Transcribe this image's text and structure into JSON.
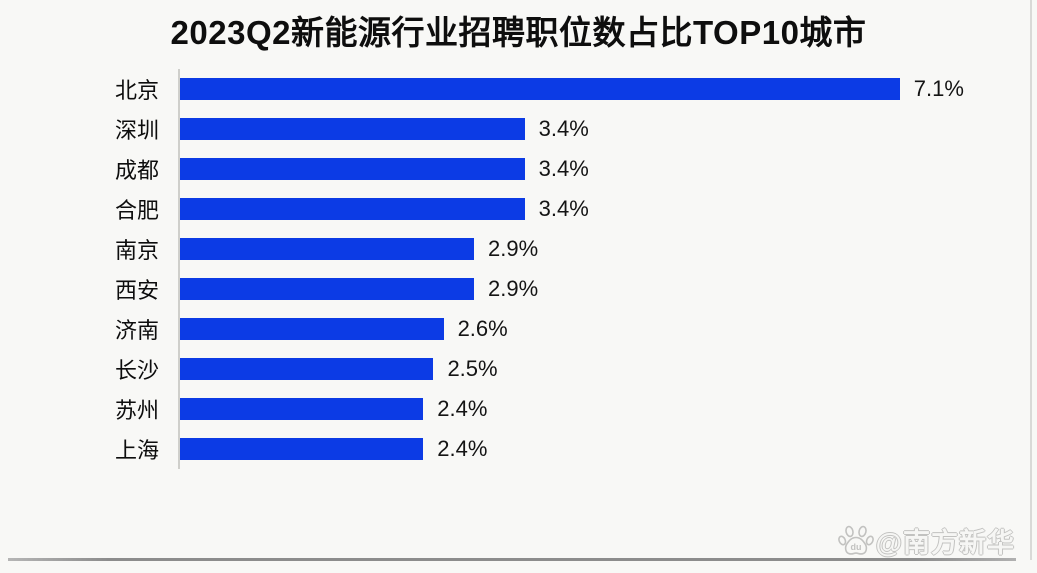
{
  "title": "2023Q2新能源行业招聘职位数占比TOP10城市",
  "watermark": {
    "icon": "baidu-paw-icon",
    "icon_text": "du",
    "text": "@南方新华"
  },
  "colors": {
    "bar": "#0c3be5",
    "background": "#f8f8f6",
    "axis_line": "#cfcfcb",
    "title_text": "#0e0e0e",
    "label_text": "#0d0d0d",
    "watermark_outline": "#c2c2c0"
  },
  "chart_data": {
    "type": "bar",
    "orientation": "horizontal",
    "title": "2023Q2新能源行业招聘职位数占比TOP10城市",
    "categories": [
      "北京",
      "深圳",
      "成都",
      "合肥",
      "南京",
      "西安",
      "济南",
      "长沙",
      "苏州",
      "上海"
    ],
    "values": [
      7.1,
      3.4,
      3.4,
      3.4,
      2.9,
      2.9,
      2.6,
      2.5,
      2.4,
      2.4
    ],
    "value_labels": [
      "7.1%",
      "3.4%",
      "3.4%",
      "3.4%",
      "2.9%",
      "2.9%",
      "2.6%",
      "2.5%",
      "2.4%",
      "2.4%"
    ],
    "xlabel": "",
    "ylabel": "",
    "xlim": [
      0,
      8
    ],
    "grid": false,
    "legend": null,
    "sorted": "descending"
  }
}
